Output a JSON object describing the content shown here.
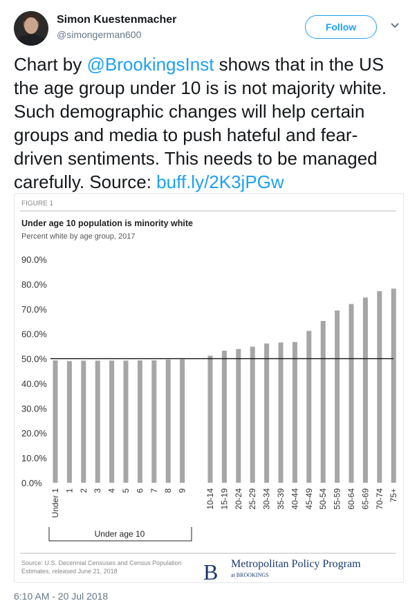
{
  "user": {
    "name": "Simon Kuestenmacher",
    "handle": "@simongerman600",
    "follow_label": "Follow"
  },
  "tweet": {
    "prefix": "Chart by ",
    "mention": "@BrookingsInst",
    "body": " shows that in the US the age group under 10 is is not majority white. Such demographic changes will help certain groups and media to push hateful and fear-driven sentiments. This needs to be managed carefully. Source: ",
    "link": "buff.ly/2K3jPGw",
    "timestamp": "6:10 AM - 20 Jul 2018"
  },
  "colors": {
    "accent": "#1da1f2",
    "bar": "#a6a6a6",
    "brookings_blue": "#1a3a6e"
  },
  "figure": {
    "label": "FIGURE 1",
    "group_label": "Under age 10",
    "source": [
      "Source: U.S. Decennial Censuses and Census Population",
      "Estimates, released June 21, 2018"
    ],
    "logo_letter": "B",
    "program": "Metropolitan Policy Program",
    "at_brookings": "at BROOKINGS"
  },
  "chart_data": {
    "type": "bar",
    "title": "Under age 10 population is minority white",
    "subtitle": "Percent white by age group, 2017",
    "categories": [
      "Under 1",
      "1",
      "2",
      "3",
      "4",
      "5",
      "6",
      "7",
      "8",
      "9",
      "10-14",
      "15-19",
      "20-24",
      "25-29",
      "30-34",
      "35-39",
      "40-44",
      "45-49",
      "50-54",
      "55-59",
      "60-64",
      "65-69",
      "70-74",
      "75+"
    ],
    "values": [
      49.3,
      49.0,
      49.2,
      49.2,
      49.2,
      49.2,
      49.3,
      49.3,
      49.6,
      49.7,
      51.2,
      53.2,
      53.9,
      54.8,
      56.1,
      56.5,
      56.7,
      61.2,
      65.2,
      69.4,
      72.0,
      74.6,
      77.2,
      78.2
    ],
    "yticks": [
      "90.0%",
      "80.0%",
      "70.0%",
      "60.0%",
      "50.0%",
      "40.0%",
      "30.0%",
      "20.0%",
      "10.0%",
      "0.0%"
    ],
    "ylim": [
      0,
      90
    ],
    "reference_line": 50,
    "grid": false
  }
}
